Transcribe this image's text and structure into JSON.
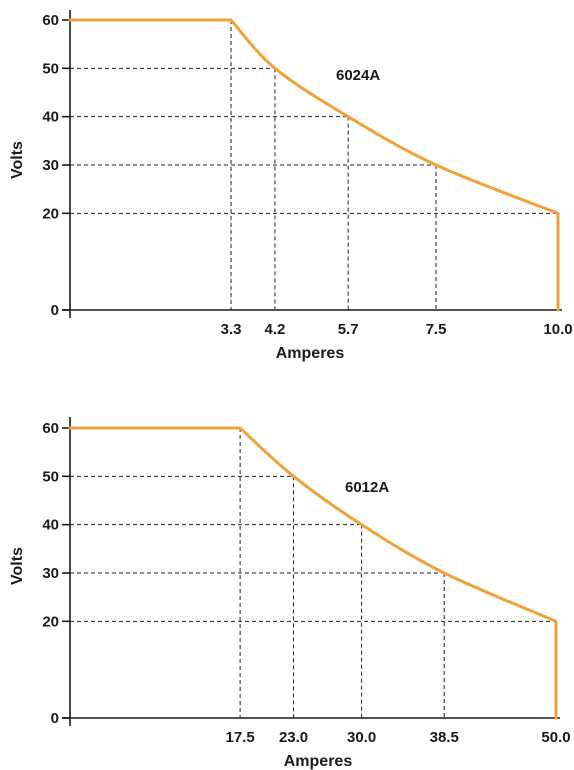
{
  "colors": {
    "curve": "#f0a13a",
    "ink": "#1a1a1a"
  },
  "chart_data": [
    {
      "type": "line",
      "title": "6024A",
      "xlabel": "Amperes",
      "ylabel": "Volts",
      "yticks": [
        0,
        20,
        30,
        40,
        50,
        60
      ],
      "ylim": [
        0,
        60
      ],
      "xlim": [
        0,
        10
      ],
      "xtick_labels": [
        "3.3",
        "4.2",
        "5.7",
        "7.5",
        "10.0"
      ],
      "xtick_values": [
        3.3,
        4.2,
        5.7,
        7.5,
        10.0
      ],
      "series": [
        {
          "x": [
            0,
            3.3,
            4.2,
            5.7,
            7.5,
            10.0,
            10.0
          ],
          "y": [
            60,
            60,
            50,
            40,
            30,
            20,
            0
          ]
        }
      ],
      "guides": [
        {
          "x": 3.3,
          "y": 60
        },
        {
          "x": 4.2,
          "y": 50
        },
        {
          "x": 5.7,
          "y": 40
        },
        {
          "x": 7.5,
          "y": 30
        },
        {
          "x": 10.0,
          "y": 20
        }
      ],
      "grid": false
    },
    {
      "type": "line",
      "title": "6012A",
      "xlabel": "Amperes",
      "ylabel": "Volts",
      "yticks": [
        0,
        20,
        30,
        40,
        50,
        60
      ],
      "ylim": [
        0,
        60
      ],
      "xlim": [
        0,
        50
      ],
      "xtick_labels": [
        "17.5",
        "23.0",
        "30.0",
        "38.5",
        "50.0"
      ],
      "xtick_values": [
        17.5,
        23.0,
        30.0,
        38.5,
        50.0
      ],
      "series": [
        {
          "x": [
            0,
            17.5,
            23.0,
            30.0,
            38.5,
            50.0,
            50.0
          ],
          "y": [
            60,
            60,
            50,
            40,
            30,
            20,
            0
          ]
        }
      ],
      "guides": [
        {
          "x": 17.5,
          "y": 60
        },
        {
          "x": 23.0,
          "y": 50
        },
        {
          "x": 30.0,
          "y": 40
        },
        {
          "x": 38.5,
          "y": 30
        },
        {
          "x": 50.0,
          "y": 20
        }
      ],
      "grid": false
    }
  ]
}
